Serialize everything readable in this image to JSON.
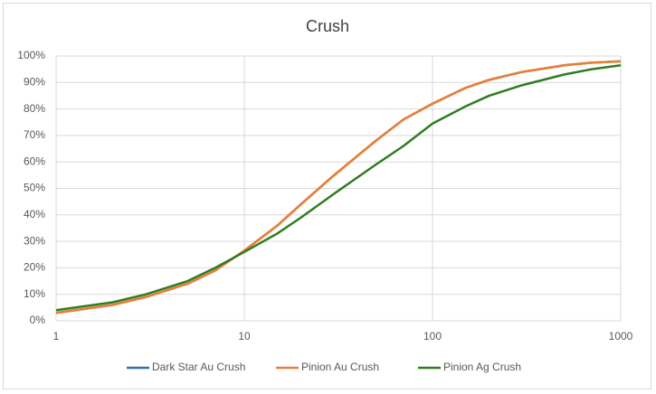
{
  "chart_data": {
    "type": "line",
    "title": "Crush",
    "x": [
      1,
      2,
      3,
      5,
      7,
      10,
      15,
      20,
      30,
      50,
      70,
      100,
      150,
      200,
      300,
      500,
      700,
      1000
    ],
    "series": [
      {
        "name": "Dark Star Au Crush",
        "color": "#2e75b6",
        "values": [
          3,
          6,
          9,
          14,
          19,
          26.5,
          36,
          44,
          55,
          68,
          76,
          82,
          88,
          91,
          94,
          96.5,
          97.5,
          98
        ]
      },
      {
        "name": "Pinion Au Crush",
        "color": "#ed7d31",
        "values": [
          3,
          6,
          9,
          14,
          19,
          26.5,
          36,
          44,
          55,
          68,
          76,
          82,
          88,
          91,
          94,
          96.5,
          97.5,
          98
        ]
      },
      {
        "name": "Pinion Ag Crush",
        "color": "#2e7d1f",
        "values": [
          4,
          7,
          10,
          15,
          20,
          26,
          33,
          39,
          48,
          59,
          66,
          74.5,
          81,
          85,
          89,
          93,
          95,
          96.5
        ]
      }
    ],
    "xscale": "log",
    "xlim": [
      1,
      1000
    ],
    "xticks": [
      1,
      10,
      100,
      1000
    ],
    "ylim": [
      0,
      100
    ],
    "yticks": [
      {
        "value": 0,
        "label": "0%"
      },
      {
        "value": 10,
        "label": "10%"
      },
      {
        "value": 20,
        "label": "20%"
      },
      {
        "value": 30,
        "label": "30%"
      },
      {
        "value": 40,
        "label": "40%"
      },
      {
        "value": 50,
        "label": "50%"
      },
      {
        "value": 60,
        "label": "60%"
      },
      {
        "value": 70,
        "label": "70%"
      },
      {
        "value": 80,
        "label": "80%"
      },
      {
        "value": 90,
        "label": "90%"
      },
      {
        "value": 100,
        "label": "100%"
      }
    ],
    "grid": true,
    "legend": "bottom"
  }
}
